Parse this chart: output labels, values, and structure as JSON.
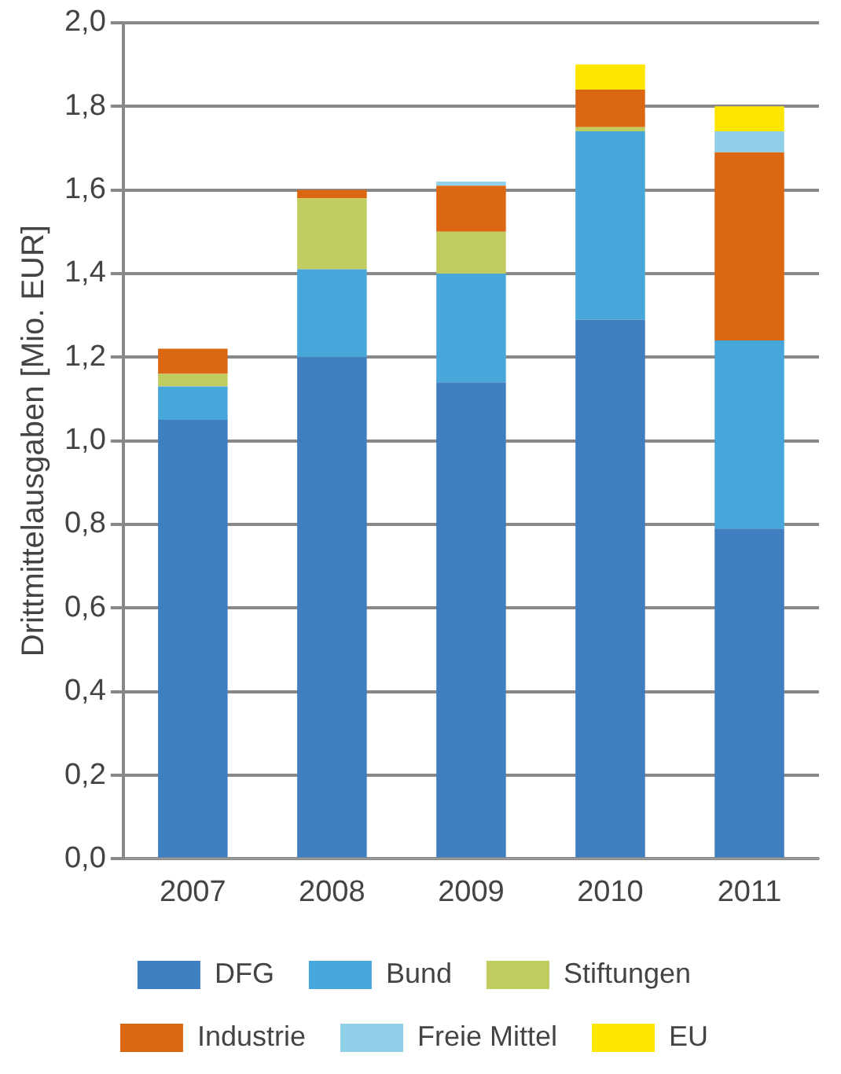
{
  "chart_data": {
    "type": "bar",
    "stacked": true,
    "ylabel": "Drittmittelausgaben [Mio. EUR]",
    "categories": [
      "2007",
      "2008",
      "2009",
      "2010",
      "2011"
    ],
    "series": [
      {
        "name": "DFG",
        "color": "#3f7fbf",
        "values": [
          1.05,
          1.2,
          1.14,
          1.29,
          0.79
        ]
      },
      {
        "name": "Bund",
        "color": "#47a7db",
        "values": [
          0.08,
          0.21,
          0.26,
          0.45,
          0.45
        ]
      },
      {
        "name": "Stiftungen",
        "color": "#c1cc5e",
        "values": [
          0.03,
          0.17,
          0.1,
          0.01,
          null
        ]
      },
      {
        "name": "Industrie",
        "color": "#dc6712",
        "values": [
          0.06,
          0.02,
          0.11,
          0.09,
          0.45
        ]
      },
      {
        "name": "Freie Mittel",
        "color": "#8fcfe8",
        "values": [
          null,
          null,
          0.01,
          null,
          0.05
        ]
      },
      {
        "name": "EU",
        "color": "#ffe600",
        "values": [
          null,
          null,
          null,
          0.06,
          0.06
        ]
      }
    ],
    "ylim": [
      0,
      2
    ],
    "yticks": [
      {
        "value": 0,
        "label": "0,0"
      },
      {
        "value": 0.2,
        "label": "0,2"
      },
      {
        "value": 0.4,
        "label": "0,4"
      },
      {
        "value": 0.6,
        "label": "0,6"
      },
      {
        "value": 0.8,
        "label": "0,8"
      },
      {
        "value": 1,
        "label": "1,0"
      },
      {
        "value": 1.2,
        "label": "1,2"
      },
      {
        "value": 1.4,
        "label": "1,4"
      },
      {
        "value": 1.6,
        "label": "1,6"
      },
      {
        "value": 1.8,
        "label": "1,8"
      },
      {
        "value": 2,
        "label": "2,0"
      }
    ],
    "grid": "y",
    "legend": "bottom"
  }
}
